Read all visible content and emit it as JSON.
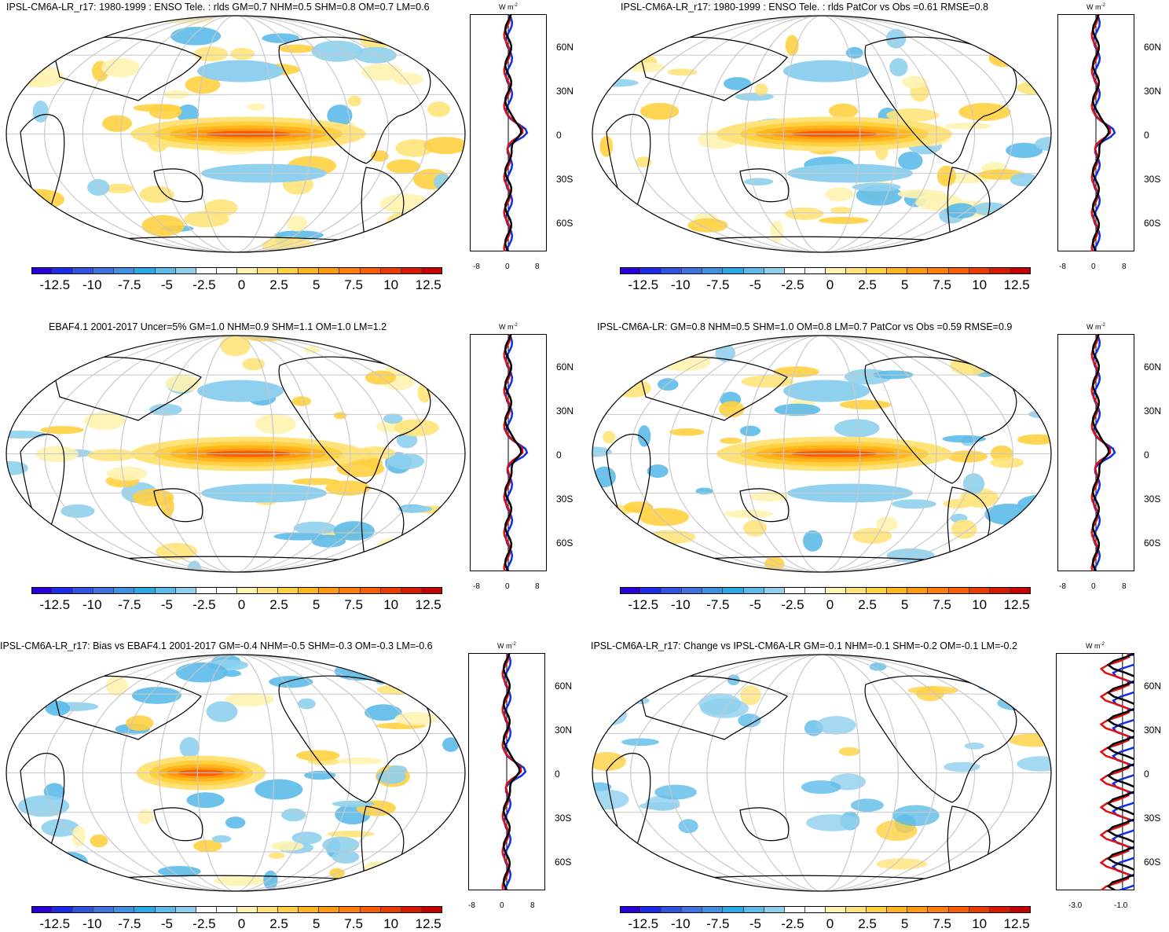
{
  "unit_label": "W m",
  "unit_sup": "-2",
  "lat_labels": [
    "60N",
    "30N",
    "0",
    "30S",
    "60S"
  ],
  "colorbar": {
    "colors": [
      "#2b00d8",
      "#1a2ae6",
      "#2f54e2",
      "#3f74e0",
      "#3d90e2",
      "#2aa9e6",
      "#5cbbe8",
      "#8fd0ee",
      "#ffffff",
      "#ffffff",
      "#fff3b0",
      "#ffe37a",
      "#ffd040",
      "#ffb51e",
      "#ff9a10",
      "#ff7d08",
      "#f85e04",
      "#e83c02",
      "#d61a00",
      "#c40000"
    ],
    "labels": [
      "-12.5",
      "-10",
      "-7.5",
      "-5",
      "-2.5",
      "0",
      "2.5",
      "5",
      "7.5",
      "10",
      "12.5"
    ]
  },
  "panels": [
    {
      "title": "IPSL-CM6A-LR_r17: 1980-1999 : ENSO Tele. : rlds GM=0.7 NHM=0.5 SHM=0.8 OM=0.7 LM=0.6",
      "ticks": [
        "-8",
        "0",
        "8"
      ]
    },
    {
      "title": "IPSL-CM6A-LR_r17: 1980-1999 : ENSO Tele. : rlds PatCor vs Obs =0.61 RMSE=0.8",
      "ticks": [
        "-8",
        "0",
        "8"
      ]
    },
    {
      "title": "EBAF4.1 2001-2017 Uncer=5% GM=1.0 NHM=0.9 SHM=1.1 OM=1.0 LM=1.2",
      "ticks": [
        "-8",
        "0",
        "8"
      ]
    },
    {
      "title": "IPSL-CM6A-LR: GM=0.8 NHM=0.5 SHM=1.0 OM=0.8 LM=0.7 PatCor vs Obs =0.59 RMSE=0.9",
      "ticks": [
        "-8",
        "0",
        "8"
      ]
    },
    {
      "title": "IPSL-CM6A-LR_r17: Bias vs EBAF4.1 2001-2017 GM=-0.4 NHM=-0.5 SHM=-0.3 OM=-0.3 LM=-0.6",
      "ticks": [
        "-8",
        "0",
        "8"
      ]
    },
    {
      "title": "IPSL-CM6A-LR_r17: Change vs IPSL-CM6A-LR GM=-0.1 NHM=-0.1 SHM=-0.2 OM=-0.1 LM=-0.2",
      "ticks": [
        "-3.0",
        "-1.0"
      ]
    }
  ]
}
